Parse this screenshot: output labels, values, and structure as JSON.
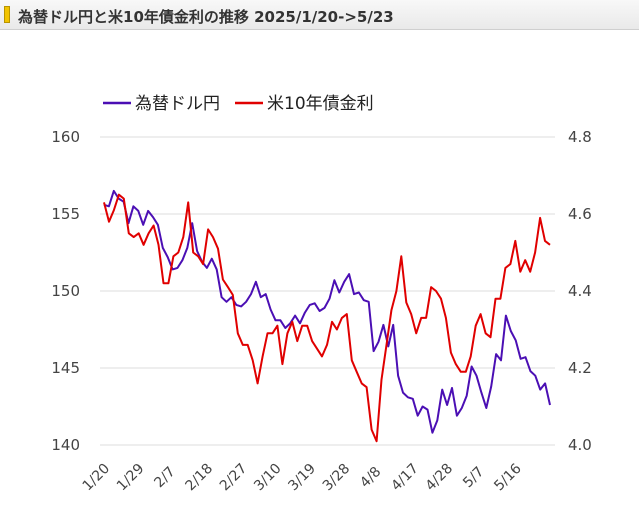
{
  "title": "為替ドル円と米10年債金利の推移 2025/1/20->5/23",
  "chart_data": {
    "type": "line",
    "legend_placement": "top-left",
    "grid": "horizontal",
    "x_tick_labels": [
      "1/20",
      "1/29",
      "2/7",
      "2/18",
      "2/27",
      "3/10",
      "3/19",
      "3/28",
      "4/8",
      "4/17",
      "4/28",
      "5/7",
      "5/16"
    ],
    "left_axis": {
      "ticks": [
        "160",
        "155",
        "150",
        "145",
        "140"
      ],
      "ylim": [
        140,
        160
      ]
    },
    "right_axis": {
      "ticks": [
        "4.8",
        "4.6",
        "4.4",
        "4.2",
        "4.0"
      ],
      "ylim": [
        4.0,
        4.8
      ]
    },
    "series": [
      {
        "name": "為替ドル円",
        "axis": "left",
        "color": "#4b0fb4",
        "values": [
          155.6,
          155.5,
          156.5,
          156.0,
          155.8,
          154.4,
          155.5,
          155.2,
          154.3,
          155.2,
          154.8,
          154.3,
          152.8,
          152.2,
          151.4,
          151.5,
          152.0,
          152.8,
          154.4,
          152.6,
          151.9,
          151.5,
          152.1,
          151.4,
          149.6,
          149.3,
          149.6,
          149.1,
          149.0,
          149.3,
          149.8,
          150.6,
          149.6,
          149.8,
          148.8,
          148.1,
          148.1,
          147.6,
          147.9,
          148.4,
          147.9,
          148.6,
          149.1,
          149.2,
          148.7,
          148.9,
          149.5,
          150.7,
          149.9,
          150.6,
          151.1,
          149.8,
          149.9,
          149.4,
          149.3,
          146.1,
          146.7,
          147.8,
          146.4,
          147.8,
          144.5,
          143.4,
          143.1,
          143.0,
          141.9,
          142.5,
          142.3,
          140.8,
          141.6,
          143.6,
          142.6,
          143.7,
          141.9,
          142.4,
          143.2,
          145.1,
          144.5,
          143.4,
          142.4,
          143.8,
          145.9,
          145.5,
          148.4,
          147.4,
          146.8,
          145.6,
          145.7,
          144.8,
          144.5,
          143.6,
          144.0,
          142.6
        ]
      },
      {
        "name": "米10年債金利",
        "axis": "right",
        "color": "#e00000",
        "values": [
          4.63,
          4.58,
          4.61,
          4.65,
          4.64,
          4.55,
          4.54,
          4.55,
          4.52,
          4.55,
          4.57,
          4.52,
          4.42,
          4.42,
          4.49,
          4.5,
          4.54,
          4.63,
          4.5,
          4.49,
          4.47,
          4.56,
          4.54,
          4.51,
          4.43,
          4.41,
          4.39,
          4.29,
          4.26,
          4.26,
          4.22,
          4.16,
          4.23,
          4.29,
          4.29,
          4.31,
          4.21,
          4.29,
          4.32,
          4.27,
          4.31,
          4.31,
          4.27,
          4.25,
          4.23,
          4.26,
          4.32,
          4.3,
          4.33,
          4.34,
          4.22,
          4.19,
          4.16,
          4.15,
          4.04,
          4.01,
          4.17,
          4.26,
          4.35,
          4.4,
          4.49,
          4.37,
          4.34,
          4.29,
          4.33,
          4.33,
          4.41,
          4.4,
          4.38,
          4.33,
          4.24,
          4.21,
          4.19,
          4.19,
          4.23,
          4.31,
          4.34,
          4.29,
          4.28,
          4.38,
          4.38,
          4.46,
          4.47,
          4.53,
          4.45,
          4.48,
          4.45,
          4.5,
          4.59,
          4.53,
          4.52
        ]
      }
    ]
  }
}
